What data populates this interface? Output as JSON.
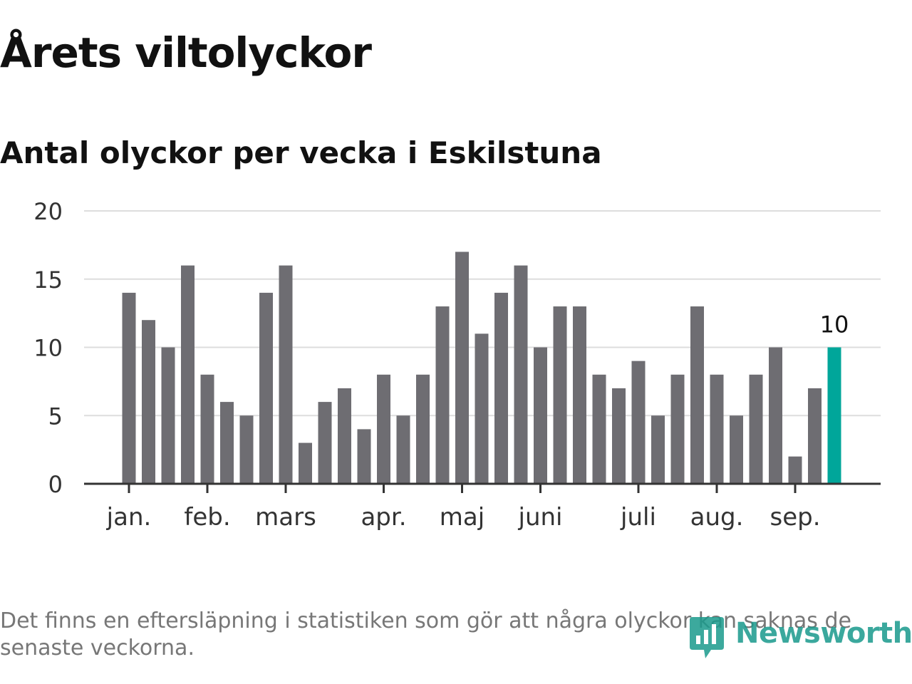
{
  "title": "Årets viltolyckor",
  "subtitle": "Antal olyckor per vecka i Eskilstuna",
  "footnote": "Det finns en eftersläpning i statistiken som gör att några olyckor kan saknas de senaste veckorna.",
  "brand": "Newsworthy",
  "colors": {
    "bar": "#6e6d72",
    "highlight": "#00a69a",
    "grid": "#dddddd",
    "axis": "#333333",
    "logo": "#1a9a8c"
  },
  "chart_data": {
    "type": "bar",
    "ylim": [
      0,
      20
    ],
    "yticks": [
      0,
      5,
      10,
      15,
      20
    ],
    "values": [
      14,
      12,
      10,
      16,
      8,
      6,
      5,
      14,
      16,
      3,
      6,
      7,
      4,
      8,
      5,
      8,
      13,
      17,
      11,
      14,
      16,
      10,
      13,
      13,
      8,
      7,
      9,
      5,
      8,
      13,
      8,
      5,
      8,
      10,
      2,
      7,
      10
    ],
    "month_labels": [
      {
        "label": "jan.",
        "week": 1
      },
      {
        "label": "feb.",
        "week": 5
      },
      {
        "label": "mars",
        "week": 9
      },
      {
        "label": "apr.",
        "week": 14
      },
      {
        "label": "maj",
        "week": 18
      },
      {
        "label": "juni",
        "week": 22
      },
      {
        "label": "juli",
        "week": 27
      },
      {
        "label": "aug.",
        "week": 31
      },
      {
        "label": "sep.",
        "week": 35
      }
    ],
    "highlight_index": 36,
    "highlight_label": "10",
    "grid": true
  }
}
